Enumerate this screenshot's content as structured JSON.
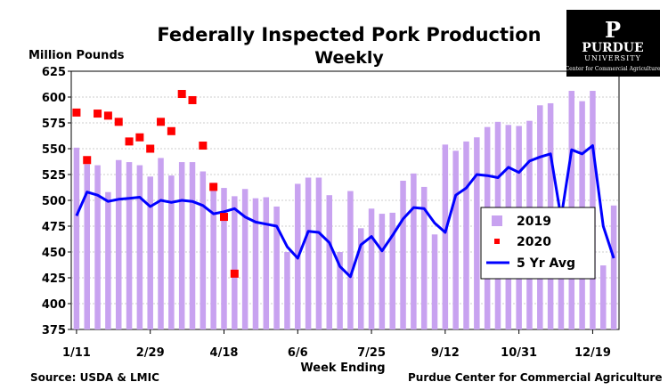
{
  "chart_data": {
    "type": "bar",
    "title": "Federally Inspected Pork Production",
    "subtitle": "Weekly",
    "ylabel": "Million Pounds",
    "xlabel": "Week Ending",
    "ylim": [
      375,
      625
    ],
    "yticks": [
      "375",
      "400",
      "425",
      "450",
      "475",
      "500",
      "525",
      "550",
      "575",
      "600",
      "625"
    ],
    "xtick_labels": [
      {
        "label": "1/11",
        "week": 1
      },
      {
        "label": "2/29",
        "week": 8
      },
      {
        "label": "4/18",
        "week": 15
      },
      {
        "label": "6/6",
        "week": 22
      },
      {
        "label": "7/25",
        "week": 29
      },
      {
        "label": "9/12",
        "week": 36
      },
      {
        "label": "10/31",
        "week": 43
      },
      {
        "label": "12/19",
        "week": 50
      }
    ],
    "grid": true,
    "legend_position": "right",
    "series": [
      {
        "name": "2019",
        "type": "bar",
        "color": "#c8a2f0",
        "values": [
          551,
          535,
          534,
          508,
          539,
          537,
          534,
          523,
          541,
          524,
          537,
          537,
          528,
          517,
          512,
          504,
          511,
          502,
          503,
          494,
          450,
          516,
          522,
          522,
          505,
          450,
          509,
          473,
          492,
          487,
          488,
          519,
          526,
          513,
          467,
          554,
          548,
          557,
          561,
          571,
          576,
          573,
          572,
          577,
          592,
          594,
          484,
          606,
          596,
          606,
          437,
          495
        ]
      },
      {
        "name": "2020",
        "type": "scatter",
        "color": "#ff0000",
        "values": [
          585,
          539,
          584,
          582,
          576,
          557,
          561,
          550,
          576,
          567,
          603,
          597,
          553,
          513,
          484,
          429
        ]
      },
      {
        "name": "5 Yr Avg",
        "type": "line",
        "color": "#0000ff",
        "values": [
          485,
          508,
          505,
          499,
          501,
          502,
          503,
          494,
          500,
          498,
          500,
          499,
          495,
          487,
          489,
          492,
          484,
          479,
          477,
          475,
          455,
          444,
          470,
          469,
          459,
          436,
          426,
          457,
          465,
          451,
          466,
          482,
          493,
          492,
          478,
          469,
          505,
          512,
          525,
          524,
          522,
          532,
          527,
          538,
          542,
          545,
          483,
          549,
          545,
          553,
          475,
          444
        ]
      }
    ]
  },
  "logo": {
    "mark": "P",
    "name": "PURDUE",
    "sub": "UNIVERSITY",
    "caption": "Center for Commercial Agriculture"
  },
  "footer": {
    "source": "Source:  USDA & LMIC",
    "credit": "Purdue Center for Commercial Agriculture"
  }
}
